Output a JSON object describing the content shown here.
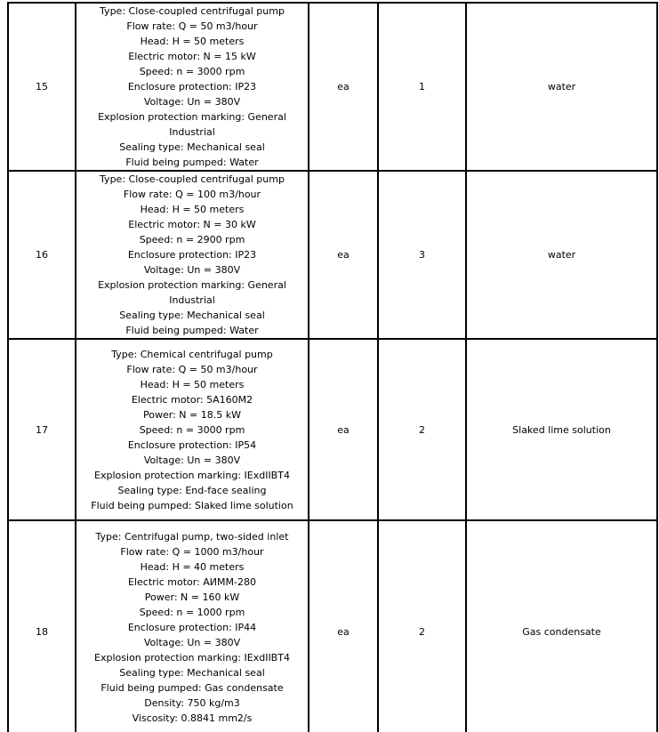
{
  "rows": [
    {
      "no": "15",
      "unit": "ea",
      "qty": "1",
      "note": "water",
      "spec": [
        "Type: Close-coupled centrifugal pump",
        "Flow rate: Q = 50 m3/hour",
        "Head: H = 50 meters",
        "Electric motor: N = 15 kW",
        "Speed: n = 3000 rpm",
        "Enclosure protection: IP23",
        "Voltage: Un = 380V",
        "Explosion protection marking: General",
        "Industrial",
        "Sealing type: Mechanical seal",
        "Fluid being pumped: Water"
      ]
    },
    {
      "no": "16",
      "unit": "ea",
      "qty": "3",
      "note": "water",
      "spec": [
        "Type: Close-coupled centrifugal pump",
        "Flow rate: Q = 100 m3/hour",
        "Head: H = 50 meters",
        "Electric motor: N = 30 kW",
        "Speed: n = 2900 rpm",
        "Enclosure protection: IP23",
        "Voltage: Un = 380V",
        "Explosion protection marking: General",
        "Industrial",
        "Sealing type: Mechanical seal",
        "Fluid being pumped: Water"
      ]
    },
    {
      "no": "17",
      "unit": "ea",
      "qty": "2",
      "note": "Slaked lime solution",
      "spec": [
        "Type: Chemical centrifugal pump",
        "Flow rate: Q = 50 m3/hour",
        "Head: H = 50 meters",
        "Electric motor: 5A160M2",
        "Power: N = 18.5 kW",
        "Speed: n = 3000 rpm",
        "Enclosure protection: IP54",
        "Voltage: Un = 380V",
        "Explosion protection marking: IExdIIBT4",
        "Sealing type: End-face sealing",
        "Fluid being pumped: Slaked lime solution"
      ]
    },
    {
      "no": "18",
      "unit": "ea",
      "qty": "2",
      "note": "Gas condensate",
      "spec": [
        "Type: Centrifugal pump, two-sided inlet",
        "Flow rate: Q = 1000 m3/hour",
        "Head: H = 40 meters",
        "Electric motor: АИММ-280",
        "Power: N = 160 kW",
        "Speed: n = 1000 rpm",
        "Enclosure protection: IP44",
        "Voltage: Un = 380V",
        "Explosion protection marking: IExdIIBT4",
        "Sealing type: Mechanical seal",
        "Fluid being pumped: Gas condensate",
        "Density: 750 kg/m3",
        "Viscosity: 0.8841 mm2/s"
      ]
    }
  ]
}
